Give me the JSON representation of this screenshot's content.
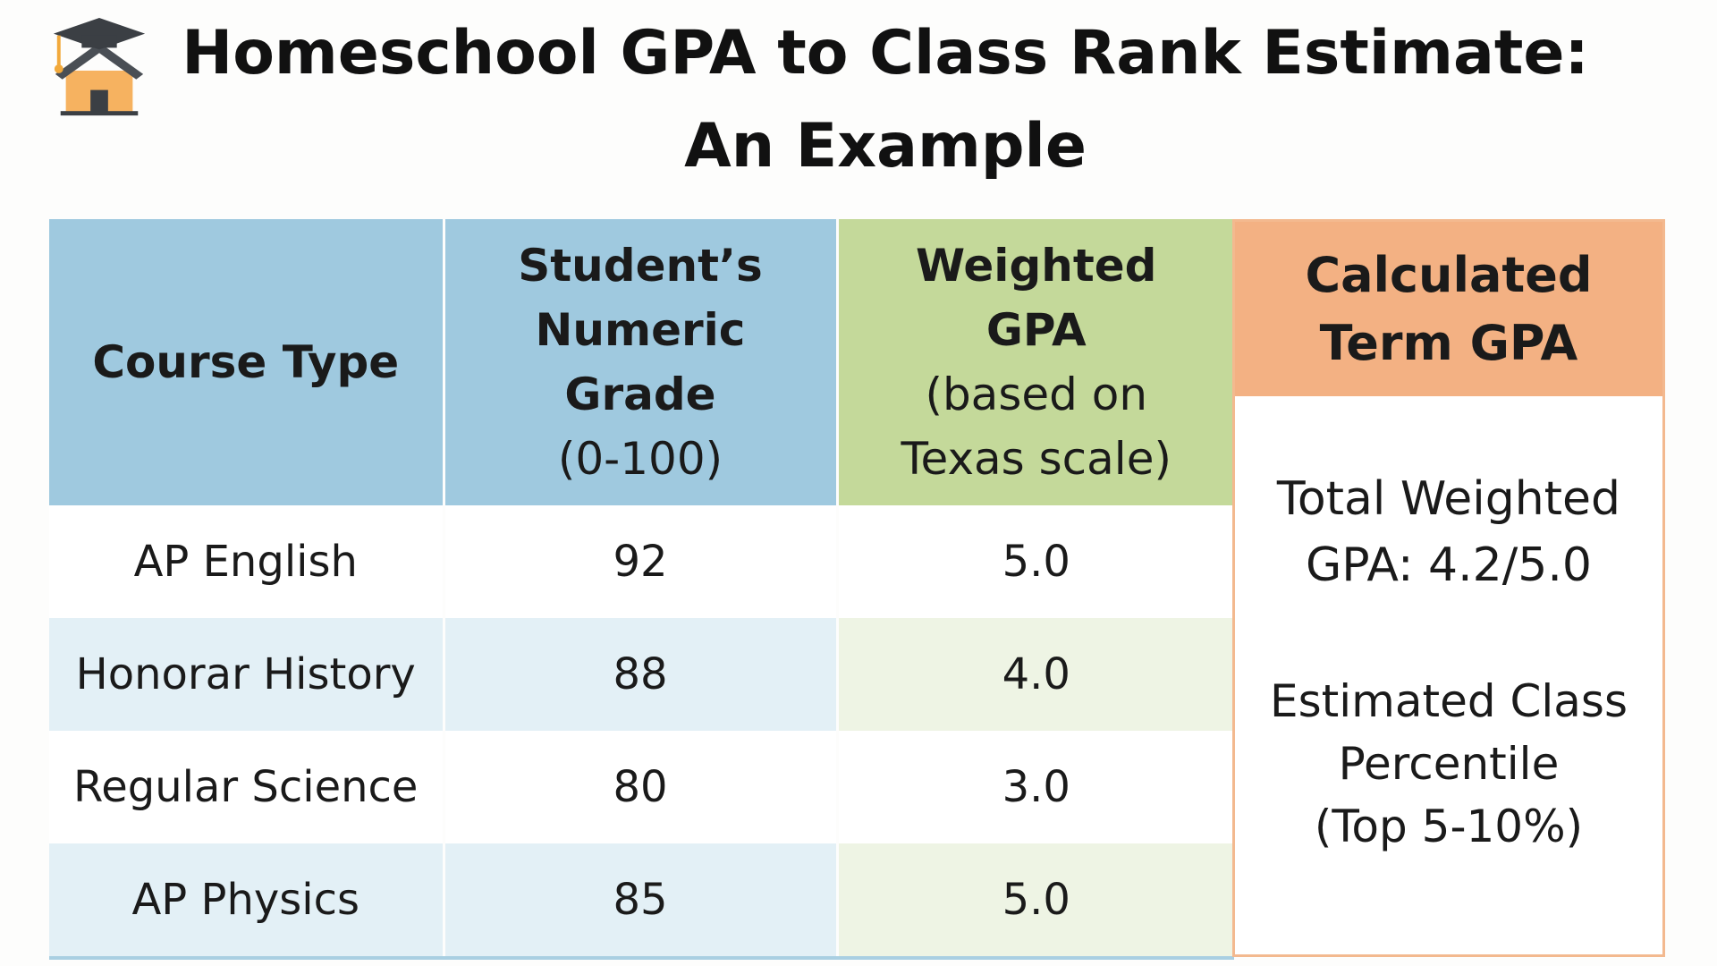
{
  "title": {
    "line1": "Homeschool GPA to Class Rank Estimate:",
    "line2": "An Example"
  },
  "logo": {
    "icon": "house-with-graduation-cap-icon"
  },
  "table": {
    "headers": {
      "course_type": "Course Type",
      "grade_line1": "Student’s",
      "grade_line2": "Numeric",
      "grade_line3": "Grade",
      "grade_line4": "(0-100)",
      "weighted_line1": "Weighted",
      "weighted_line2": "GPA",
      "weighted_line3": "(based on",
      "weighted_line4": "Texas scale)"
    },
    "rows": [
      {
        "course": "AP English",
        "grade": "92",
        "weighted_gpa": "5.0"
      },
      {
        "course": "Honorar History",
        "grade": "88",
        "weighted_gpa": "4.0"
      },
      {
        "course": "Regular Science",
        "grade": "80",
        "weighted_gpa": "3.0"
      },
      {
        "course": "AP Physics",
        "grade": "85",
        "weighted_gpa": "5.0"
      }
    ]
  },
  "calculated": {
    "header_line1": "Calculated",
    "header_line2": "Term GPA",
    "total_line1": "Total Weighted",
    "total_line2": "GPA: 4.2/5.0",
    "estimate_line1": "Estimated Class",
    "estimate_line2": "Percentile",
    "estimate_line3": "(Top 5-10%)"
  },
  "colors": {
    "header_blue": "#9fc9df",
    "header_green": "#c4d99a",
    "header_orange": "#f3b183",
    "row_blue_light": "#e3f0f6",
    "row_green_light": "#eef4e4"
  }
}
